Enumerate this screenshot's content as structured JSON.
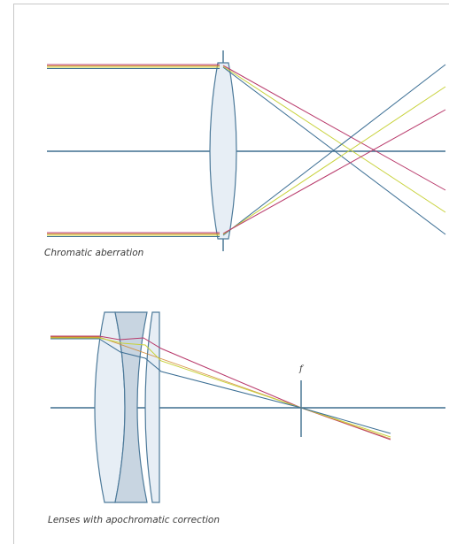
{
  "captions": {
    "top": "Chromatic aberration",
    "bottom": "Lenses with apochromatic correction"
  },
  "focal_label": "f",
  "colors": {
    "axis": "#3f6f8f",
    "lens_fill": "#e7eef5",
    "lens_stroke": "#4d7a9a",
    "lens_dark": "#c8d5e1",
    "ray_blue": "#3b6e94",
    "ray_yellow": "#c8d23a",
    "ray_red": "#b8386a",
    "ray_orange": "#d0862e",
    "frame": "#c8c8c8"
  }
}
